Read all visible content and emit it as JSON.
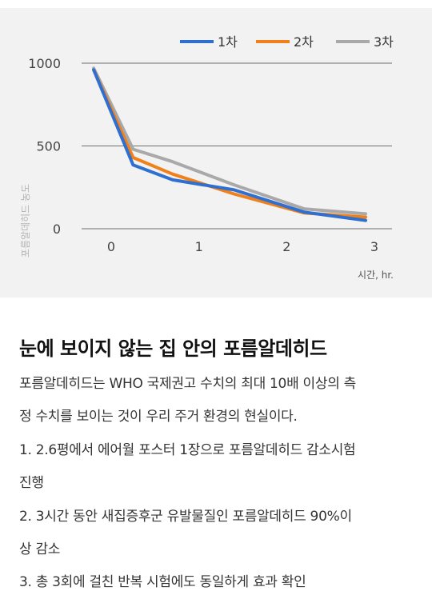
{
  "chart_data": {
    "type": "line",
    "title": "",
    "xlabel": "시간, hr.",
    "ylabel": "포름알데히드 농도",
    "x": [
      0,
      1,
      2,
      3
    ],
    "x_ticks": [
      "0",
      "1",
      "2",
      "3"
    ],
    "y_ticks": [
      "1000",
      "500",
      "0"
    ],
    "ylim": [
      0,
      1000
    ],
    "grid": "horizontal",
    "legend_position": "top-right",
    "series": [
      {
        "name": "1차",
        "color": "#2f6fd0",
        "points": [
          [
            -0.2,
            960
          ],
          [
            0.25,
            385
          ],
          [
            0.7,
            295
          ],
          [
            1.4,
            235
          ],
          [
            2.2,
            100
          ],
          [
            2.9,
            50
          ]
        ]
      },
      {
        "name": "2차",
        "color": "#f0801a",
        "points": [
          [
            -0.2,
            960
          ],
          [
            0.25,
            430
          ],
          [
            0.7,
            330
          ],
          [
            1.4,
            210
          ],
          [
            2.2,
            95
          ],
          [
            2.9,
            70
          ]
        ]
      },
      {
        "name": "3차",
        "color": "#a9a9a9",
        "points": [
          [
            -0.2,
            970
          ],
          [
            0.25,
            480
          ],
          [
            0.7,
            405
          ],
          [
            1.4,
            265
          ],
          [
            2.2,
            120
          ],
          [
            2.9,
            90
          ]
        ]
      }
    ]
  },
  "article": {
    "heading": "눈에 보이지 않는 집 안의 포름알데히드",
    "intro_line1": "포름알데히드는 WHO 국제권고 수치의 최대 10배 이상의 측",
    "intro_line2": "정 수치를 보이는 것이 우리 주거 환경의 현실이다.",
    "item1_line1": "1. 2.6평에서 에어월 포스터 1장으로 포름알데히드 감소시험",
    "item1_line2": "진행",
    "item2_line1": "2. 3시간 동안 새집증후군 유발물질인 포름알데히드 90%이",
    "item2_line2": "상 감소",
    "item3_line1": "3. 총 3회에 걸친 반복 시험에도 동일하게 효과 확인"
  }
}
